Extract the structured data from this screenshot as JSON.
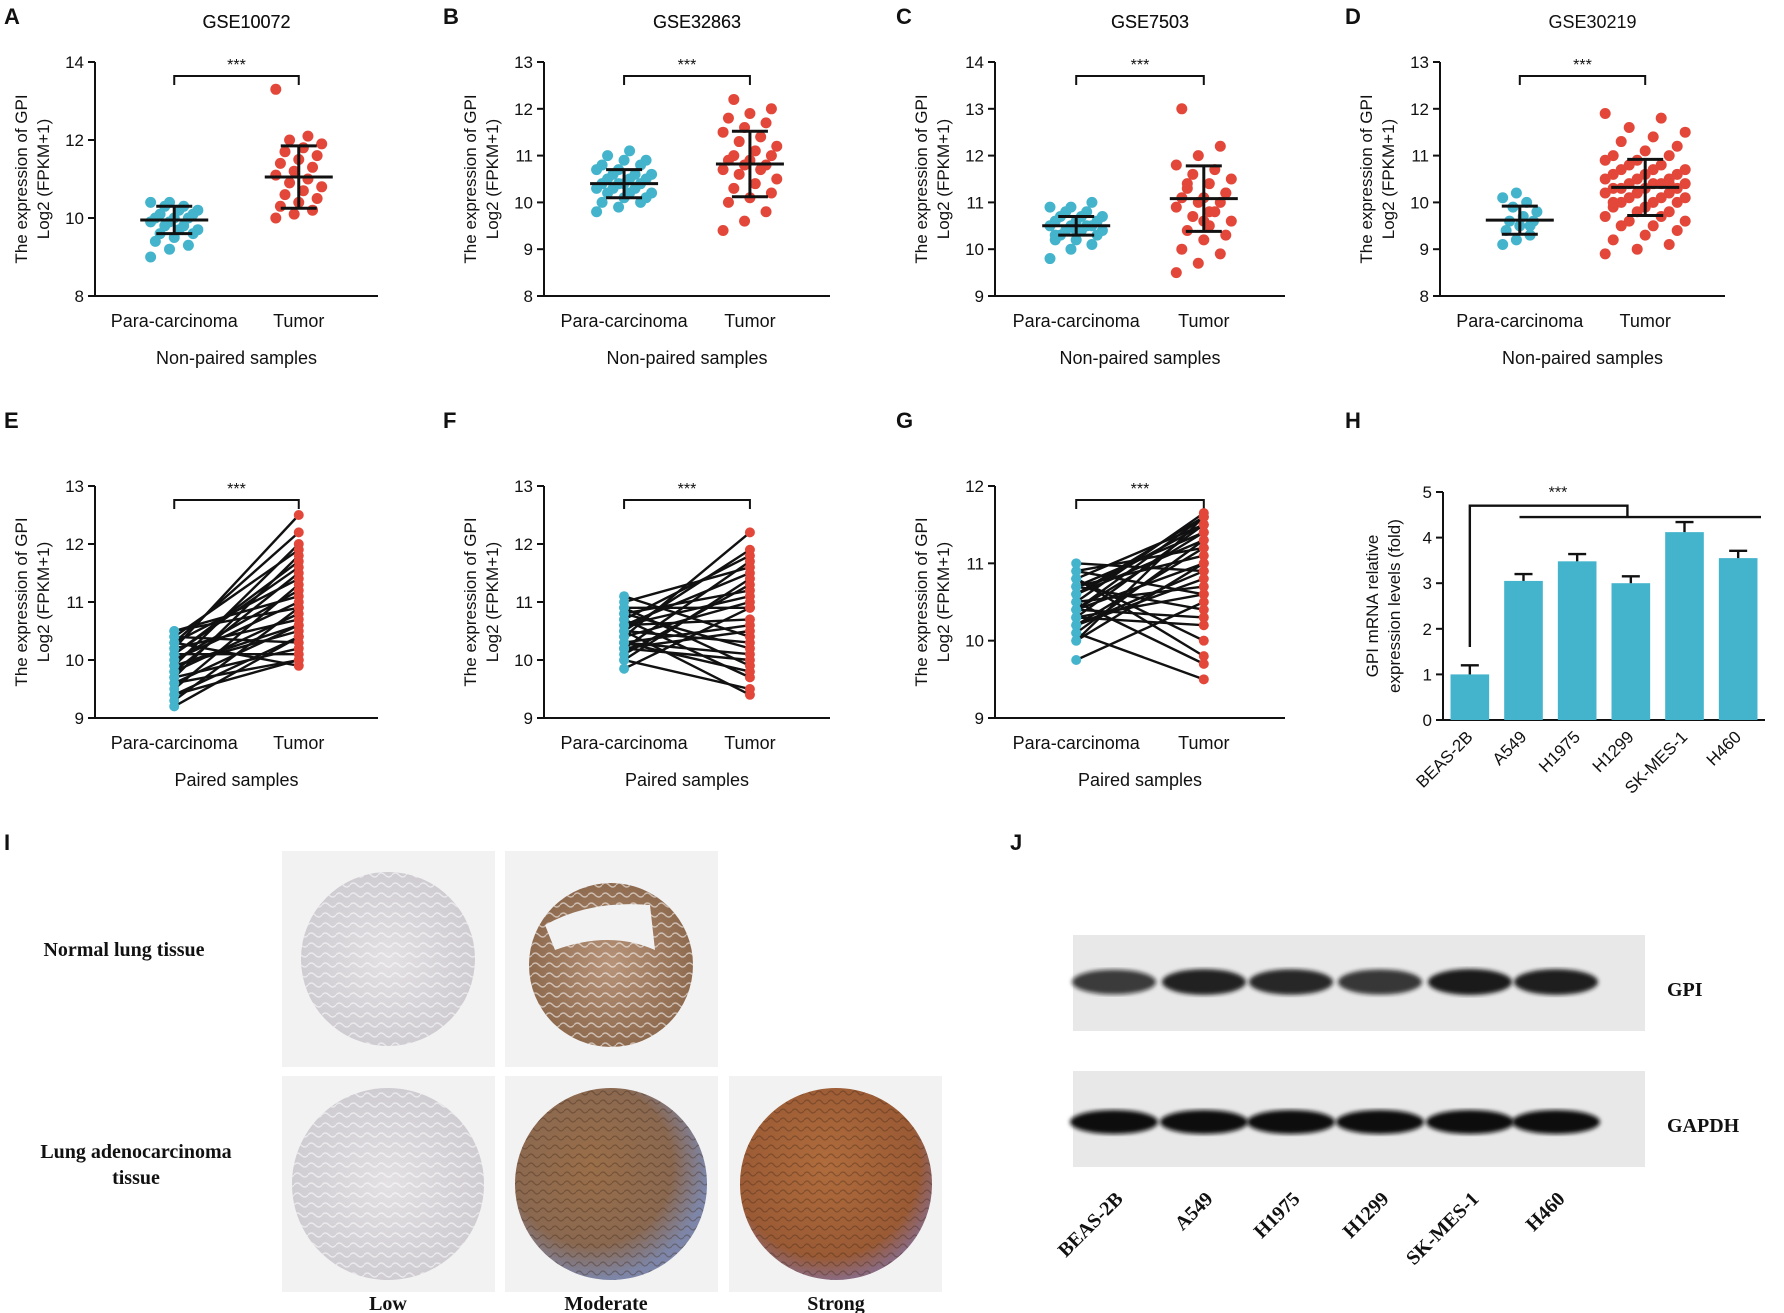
{
  "colors": {
    "para": "#44b4cc",
    "tumor": "#e2473a",
    "bar": "#44b4cc",
    "line": "#111111"
  },
  "yAxisLabel": {
    "line1": "The expression of GPI",
    "line2": "Log2 (FPKM+1)"
  },
  "chart_data": [
    {
      "panel": "A",
      "type": "scatter",
      "title": "GSE10072",
      "xlabel": "Non-paired samples",
      "categories": [
        "Para-carcinoma",
        "Tumor"
      ],
      "ylim": [
        8,
        14
      ],
      "yticks": [
        8,
        10,
        12,
        14
      ],
      "significance": "***",
      "groups": [
        {
          "name": "Para-carcinoma",
          "mean": 9.95,
          "sd": 0.35,
          "values": [
            9.0,
            9.2,
            9.3,
            9.4,
            9.5,
            9.6,
            9.6,
            9.7,
            9.7,
            9.8,
            9.8,
            9.9,
            9.9,
            10.0,
            10.0,
            10.0,
            10.1,
            10.1,
            10.2,
            10.2,
            10.3,
            10.3,
            10.4,
            10.4
          ]
        },
        {
          "name": "Tumor",
          "mean": 11.05,
          "sd": 0.8,
          "values": [
            10.0,
            10.1,
            10.2,
            10.3,
            10.4,
            10.5,
            10.6,
            10.7,
            10.8,
            10.9,
            11.0,
            11.1,
            11.2,
            11.3,
            11.4,
            11.5,
            11.6,
            11.7,
            11.8,
            11.9,
            12.0,
            12.1,
            13.3
          ]
        }
      ]
    },
    {
      "panel": "B",
      "type": "scatter",
      "title": "GSE32863",
      "xlabel": "Non-paired samples",
      "categories": [
        "Para-carcinoma",
        "Tumor"
      ],
      "ylim": [
        8,
        13
      ],
      "yticks": [
        8,
        9,
        10,
        11,
        12,
        13
      ],
      "significance": "***",
      "groups": [
        {
          "name": "Para-carcinoma",
          "mean": 10.4,
          "sd": 0.3,
          "values": [
            9.8,
            9.9,
            10.0,
            10.0,
            10.1,
            10.1,
            10.2,
            10.2,
            10.2,
            10.3,
            10.3,
            10.3,
            10.4,
            10.4,
            10.4,
            10.4,
            10.5,
            10.5,
            10.5,
            10.6,
            10.6,
            10.6,
            10.7,
            10.7,
            10.8,
            10.8,
            10.9,
            10.9,
            11.0,
            11.1
          ]
        },
        {
          "name": "Tumor",
          "mean": 10.82,
          "sd": 0.7,
          "values": [
            9.4,
            9.6,
            9.8,
            10.0,
            10.1,
            10.2,
            10.3,
            10.4,
            10.5,
            10.6,
            10.7,
            10.7,
            10.8,
            10.8,
            10.9,
            10.9,
            11.0,
            11.0,
            11.1,
            11.2,
            11.3,
            11.4,
            11.5,
            11.6,
            11.7,
            11.8,
            11.9,
            12.0,
            12.2
          ]
        }
      ]
    },
    {
      "panel": "C",
      "type": "scatter",
      "title": "GSE7503",
      "xlabel": "Non-paired samples",
      "categories": [
        "Para-carcinoma",
        "Tumor"
      ],
      "ylim": [
        9,
        14
      ],
      "yticks": [
        9,
        10,
        11,
        12,
        13,
        14
      ],
      "significance": "***",
      "groups": [
        {
          "name": "Para-carcinoma",
          "mean": 10.5,
          "sd": 0.2,
          "values": [
            9.8,
            10.0,
            10.1,
            10.2,
            10.2,
            10.3,
            10.3,
            10.4,
            10.4,
            10.4,
            10.5,
            10.5,
            10.5,
            10.5,
            10.6,
            10.6,
            10.6,
            10.7,
            10.7,
            10.7,
            10.8,
            10.8,
            10.9,
            10.9,
            11.0,
            10.3,
            10.4,
            10.6
          ]
        },
        {
          "name": "Tumor",
          "mean": 11.08,
          "sd": 0.7,
          "values": [
            9.5,
            9.7,
            9.9,
            10.0,
            10.2,
            10.3,
            10.4,
            10.5,
            10.6,
            10.7,
            10.8,
            10.9,
            11.0,
            11.0,
            11.1,
            11.1,
            11.2,
            11.3,
            11.4,
            11.5,
            11.6,
            11.7,
            11.8,
            12.0,
            12.2,
            13.0,
            10.6,
            11.2,
            11.4,
            10.8
          ]
        }
      ]
    },
    {
      "panel": "D",
      "type": "scatter",
      "title": "GSE30219",
      "xlabel": "Non-paired samples",
      "categories": [
        "Para-carcinoma",
        "Tumor"
      ],
      "ylim": [
        8,
        13
      ],
      "yticks": [
        8,
        9,
        10,
        11,
        12,
        13
      ],
      "significance": "***",
      "groups": [
        {
          "name": "Para-carcinoma",
          "mean": 9.62,
          "sd": 0.3,
          "values": [
            9.1,
            9.2,
            9.3,
            9.4,
            9.5,
            9.6,
            9.6,
            9.7,
            9.8,
            9.9,
            10.0,
            10.1,
            10.2,
            9.5
          ]
        },
        {
          "name": "Tumor",
          "mean": 10.32,
          "sd": 0.6,
          "values": [
            8.9,
            9.0,
            9.1,
            9.2,
            9.3,
            9.4,
            9.5,
            9.5,
            9.6,
            9.6,
            9.7,
            9.7,
            9.8,
            9.8,
            9.9,
            9.9,
            10.0,
            10.0,
            10.0,
            10.1,
            10.1,
            10.1,
            10.2,
            10.2,
            10.2,
            10.3,
            10.3,
            10.3,
            10.3,
            10.4,
            10.4,
            10.4,
            10.4,
            10.5,
            10.5,
            10.5,
            10.6,
            10.6,
            10.6,
            10.7,
            10.7,
            10.7,
            10.8,
            10.8,
            10.9,
            10.9,
            11.0,
            11.0,
            11.1,
            11.2,
            11.3,
            11.4,
            11.5,
            11.6,
            11.8,
            11.9,
            10.2,
            10.4,
            10.0,
            9.9
          ]
        }
      ]
    },
    {
      "panel": "E",
      "type": "paired",
      "title": "GSE10072",
      "xlabel": "Paired samples",
      "categories": [
        "Para-carcinoma",
        "Tumor"
      ],
      "ylim": [
        9,
        13
      ],
      "yticks": [
        9,
        10,
        11,
        12,
        13
      ],
      "significance": "***",
      "pairs": [
        [
          9.2,
          10.4
        ],
        [
          9.3,
          10.9
        ],
        [
          9.4,
          10.0
        ],
        [
          9.5,
          11.3
        ],
        [
          9.6,
          10.6
        ],
        [
          9.7,
          11.8
        ],
        [
          9.7,
          10.2
        ],
        [
          9.8,
          11.5
        ],
        [
          9.8,
          10.8
        ],
        [
          9.9,
          12.0
        ],
        [
          9.9,
          10.5
        ],
        [
          10.0,
          11.0
        ],
        [
          10.0,
          11.2
        ],
        [
          10.1,
          10.1
        ],
        [
          10.1,
          11.6
        ],
        [
          10.2,
          12.5
        ],
        [
          10.2,
          10.7
        ],
        [
          10.3,
          11.4
        ],
        [
          10.3,
          9.9
        ],
        [
          10.4,
          10.3
        ],
        [
          10.4,
          11.9
        ],
        [
          10.5,
          10.9
        ],
        [
          10.5,
          11.1
        ],
        [
          9.6,
          10.0
        ],
        [
          9.9,
          10.6
        ],
        [
          10.1,
          11.7
        ],
        [
          9.4,
          10.4
        ],
        [
          10.3,
          12.2
        ]
      ]
    },
    {
      "panel": "F",
      "type": "paired",
      "title": "GSE32863",
      "xlabel": "Paired samples",
      "categories": [
        "Para-carcinoma",
        "Tumor"
      ],
      "ylim": [
        9,
        13
      ],
      "yticks": [
        9,
        10,
        11,
        12,
        13
      ],
      "significance": "***",
      "pairs": [
        [
          9.85,
          10.9
        ],
        [
          10.0,
          9.5
        ],
        [
          10.1,
          11.3
        ],
        [
          10.2,
          10.0
        ],
        [
          10.2,
          11.7
        ],
        [
          10.3,
          9.8
        ],
        [
          10.3,
          10.6
        ],
        [
          10.4,
          11.0
        ],
        [
          10.4,
          12.2
        ],
        [
          10.5,
          9.4
        ],
        [
          10.5,
          10.3
        ],
        [
          10.6,
          11.5
        ],
        [
          10.6,
          10.7
        ],
        [
          10.7,
          11.8
        ],
        [
          10.7,
          9.7
        ],
        [
          10.8,
          10.2
        ],
        [
          10.8,
          11.2
        ],
        [
          10.9,
          10.9
        ],
        [
          11.0,
          11.6
        ],
        [
          11.1,
          10.4
        ],
        [
          10.0,
          11.4
        ],
        [
          10.3,
          10.1
        ],
        [
          10.5,
          11.9
        ],
        [
          10.9,
          9.9
        ],
        [
          10.2,
          10.5
        ],
        [
          10.6,
          11.1
        ]
      ]
    },
    {
      "panel": "G",
      "type": "paired",
      "title": "GSE7503",
      "xlabel": "Paired samples",
      "categories": [
        "Para-carcinoma",
        "Tumor"
      ],
      "ylim": [
        9,
        12
      ],
      "yticks": [
        9,
        10,
        11,
        12
      ],
      "significance": "***",
      "pairs": [
        [
          9.75,
          10.5
        ],
        [
          10.0,
          11.6
        ],
        [
          10.1,
          9.5
        ],
        [
          10.2,
          11.2
        ],
        [
          10.2,
          10.9
        ],
        [
          10.3,
          11.5
        ],
        [
          10.3,
          10.2
        ],
        [
          10.4,
          11.0
        ],
        [
          10.4,
          11.4
        ],
        [
          10.5,
          9.7
        ],
        [
          10.5,
          10.7
        ],
        [
          10.6,
          11.6
        ],
        [
          10.6,
          11.3
        ],
        [
          10.7,
          10.4
        ],
        [
          10.7,
          11.1
        ],
        [
          10.8,
          11.5
        ],
        [
          10.8,
          9.8
        ],
        [
          10.9,
          10.6
        ],
        [
          10.9,
          11.2
        ],
        [
          11.0,
          10.9
        ],
        [
          10.1,
          11.3
        ],
        [
          10.4,
          10.3
        ],
        [
          10.6,
          11.5
        ],
        [
          10.3,
          10.6
        ],
        [
          10.7,
          11.4
        ],
        [
          10.2,
          10.8
        ],
        [
          10.5,
          11.65
        ],
        [
          10.8,
          10.0
        ],
        [
          10.0,
          11.0
        ],
        [
          10.4,
          11.6
        ]
      ]
    },
    {
      "panel": "H",
      "type": "bar",
      "title": "",
      "xlabel": "",
      "ylabel": {
        "line1": "GPI mRNA relative",
        "line2": "expression levels (fold)"
      },
      "categories": [
        "BEAS-2B",
        "A549",
        "H1975",
        "H1299",
        "SK-MES-1",
        "H460"
      ],
      "values": [
        1.0,
        3.05,
        3.48,
        3.0,
        4.12,
        3.55
      ],
      "errors": [
        0.2,
        0.15,
        0.16,
        0.15,
        0.22,
        0.16
      ],
      "ylim": [
        0,
        5
      ],
      "yticks": [
        0,
        1,
        2,
        3,
        4,
        5
      ],
      "significance": "***"
    }
  ],
  "panelI": {
    "label": "I",
    "rows": [
      "Normal lung tissue",
      "Lung adenocarcinoma tissue"
    ],
    "rowLines": [
      [
        "Normal lung tissue"
      ],
      [
        "Lung adenocarcinoma",
        "tissue"
      ]
    ],
    "columns": [
      "Low",
      "Moderate",
      "Strong"
    ]
  },
  "panelJ": {
    "label": "J",
    "proteins": [
      "GPI",
      "GAPDH"
    ],
    "lanes": [
      "BEAS-2B",
      "A549",
      "H1975",
      "H1299",
      "SK-MES-1",
      "H460"
    ],
    "intensity": {
      "GPI": [
        0.8,
        0.95,
        0.92,
        0.85,
        0.98,
        0.96
      ],
      "GAPDH": [
        1,
        1,
        1,
        1,
        1,
        1
      ]
    }
  }
}
